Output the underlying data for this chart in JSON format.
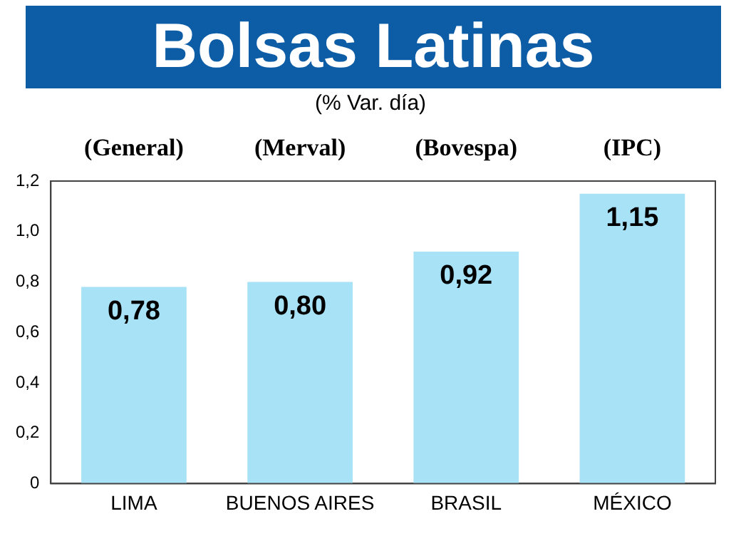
{
  "chart_data": {
    "type": "bar",
    "title": "Bolsas Latinas",
    "subtitle": "(% Var. día)",
    "categories": [
      "LIMA",
      "BUENOS AIRES",
      "BRASIL",
      "MÉXICO"
    ],
    "values": [
      0.78,
      0.8,
      0.92,
      1.15
    ],
    "value_labels": [
      "0,78",
      "0,80",
      "0,92",
      "1,15"
    ],
    "color": "#a8e2f6",
    "ylim": [
      0,
      1.2
    ],
    "yticks": [
      {
        "value": 0,
        "label": "0"
      },
      {
        "value": 0.2,
        "label": "0,2"
      },
      {
        "value": 0.4,
        "label": "0,4"
      },
      {
        "value": 0.6,
        "label": "0,6"
      },
      {
        "value": 0.8,
        "label": "0,8"
      },
      {
        "value": 1.0,
        "label": "1,0"
      },
      {
        "value": 1.2,
        "label": "1,2"
      }
    ],
    "annotations": [
      "(General)",
      "(Merval)",
      "(Bovespa)",
      "(IPC)"
    ],
    "grid": false,
    "legend": false
  }
}
